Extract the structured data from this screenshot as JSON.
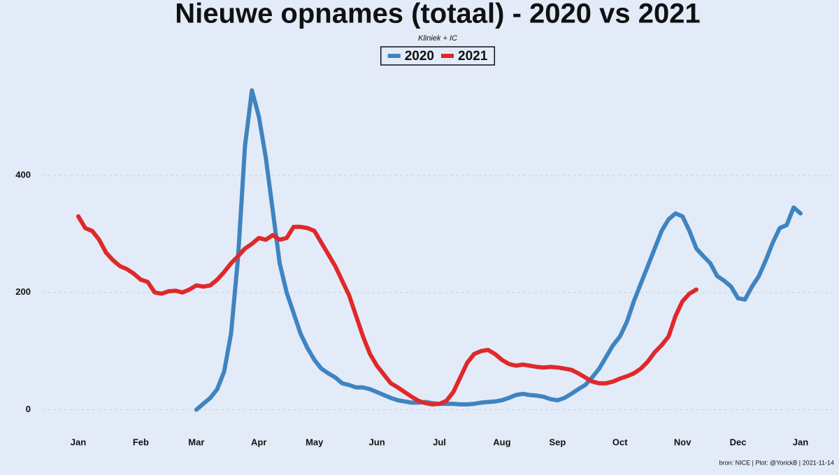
{
  "chart_data": {
    "type": "line",
    "title": "Nieuwe opnames (totaal) - 2020 vs 2021",
    "subtitle": "Kliniek + IC",
    "source": "bron: NICE  | Plot: @YorickB |  2021-11-14",
    "categories": [
      "Jan",
      null,
      null,
      null,
      null,
      null,
      null,
      null,
      null,
      "Feb",
      null,
      null,
      null,
      null,
      null,
      null,
      null,
      "Mar",
      null,
      null,
      null,
      null,
      null,
      null,
      null,
      null,
      "Apr",
      null,
      null,
      null,
      null,
      null,
      null,
      null,
      "May",
      null,
      null,
      null,
      null,
      null,
      null,
      null,
      null,
      "Jun",
      null,
      null,
      null,
      null,
      null,
      null,
      null,
      null,
      "Jul",
      null,
      null,
      null,
      null,
      null,
      null,
      null,
      null,
      "Aug",
      null,
      null,
      null,
      null,
      null,
      null,
      null,
      "Sep",
      null,
      null,
      null,
      null,
      null,
      null,
      null,
      null,
      "Oct",
      null,
      null,
      null,
      null,
      null,
      null,
      null,
      null,
      "Nov",
      null,
      null,
      null,
      null,
      null,
      null,
      null,
      "Dec",
      null,
      null,
      null,
      null,
      null,
      null,
      null,
      null,
      "Jan"
    ],
    "series": [
      {
        "name": "2020",
        "color": "#3f84c0",
        "values": [
          null,
          null,
          null,
          null,
          null,
          null,
          null,
          null,
          null,
          null,
          null,
          null,
          null,
          null,
          null,
          null,
          null,
          0,
          10,
          20,
          35,
          65,
          130,
          260,
          450,
          545,
          500,
          430,
          340,
          250,
          200,
          165,
          130,
          105,
          85,
          70,
          62,
          55,
          45,
          42,
          38,
          38,
          35,
          30,
          25,
          20,
          16,
          14,
          12,
          12,
          13,
          11,
          10,
          10,
          10,
          9,
          9,
          10,
          12,
          13,
          14,
          16,
          20,
          25,
          27,
          25,
          24,
          22,
          18,
          16,
          20,
          27,
          35,
          42,
          55,
          70,
          90,
          110,
          125,
          150,
          185,
          215,
          245,
          275,
          305,
          325,
          335,
          330,
          305,
          275,
          262,
          250,
          228,
          220,
          210,
          190,
          188,
          210,
          228,
          255,
          285,
          310,
          315,
          345,
          335
        ]
      },
      {
        "name": "2021",
        "color": "#e0282a",
        "values": [
          330,
          310,
          305,
          290,
          268,
          255,
          245,
          240,
          232,
          222,
          218,
          200,
          198,
          202,
          203,
          200,
          205,
          212,
          210,
          212,
          222,
          235,
          250,
          262,
          275,
          283,
          293,
          290,
          298,
          290,
          293,
          312,
          312,
          310,
          305,
          285,
          265,
          245,
          220,
          195,
          160,
          125,
          95,
          75,
          60,
          45,
          38,
          30,
          22,
          15,
          11,
          9,
          10,
          15,
          30,
          55,
          80,
          95,
          100,
          102,
          95,
          85,
          78,
          75,
          77,
          75,
          73,
          72,
          73,
          72,
          70,
          68,
          62,
          55,
          48,
          45,
          45,
          48,
          53,
          57,
          62,
          70,
          82,
          98,
          110,
          125,
          160,
          185,
          198,
          205,
          null,
          null,
          null,
          null,
          null,
          null,
          null,
          null,
          null,
          null,
          null,
          null,
          null,
          null,
          null
        ]
      }
    ],
    "ylim": [
      -40,
      580
    ],
    "yticks": [
      0,
      200,
      400
    ],
    "grid": true,
    "legend": "top"
  }
}
